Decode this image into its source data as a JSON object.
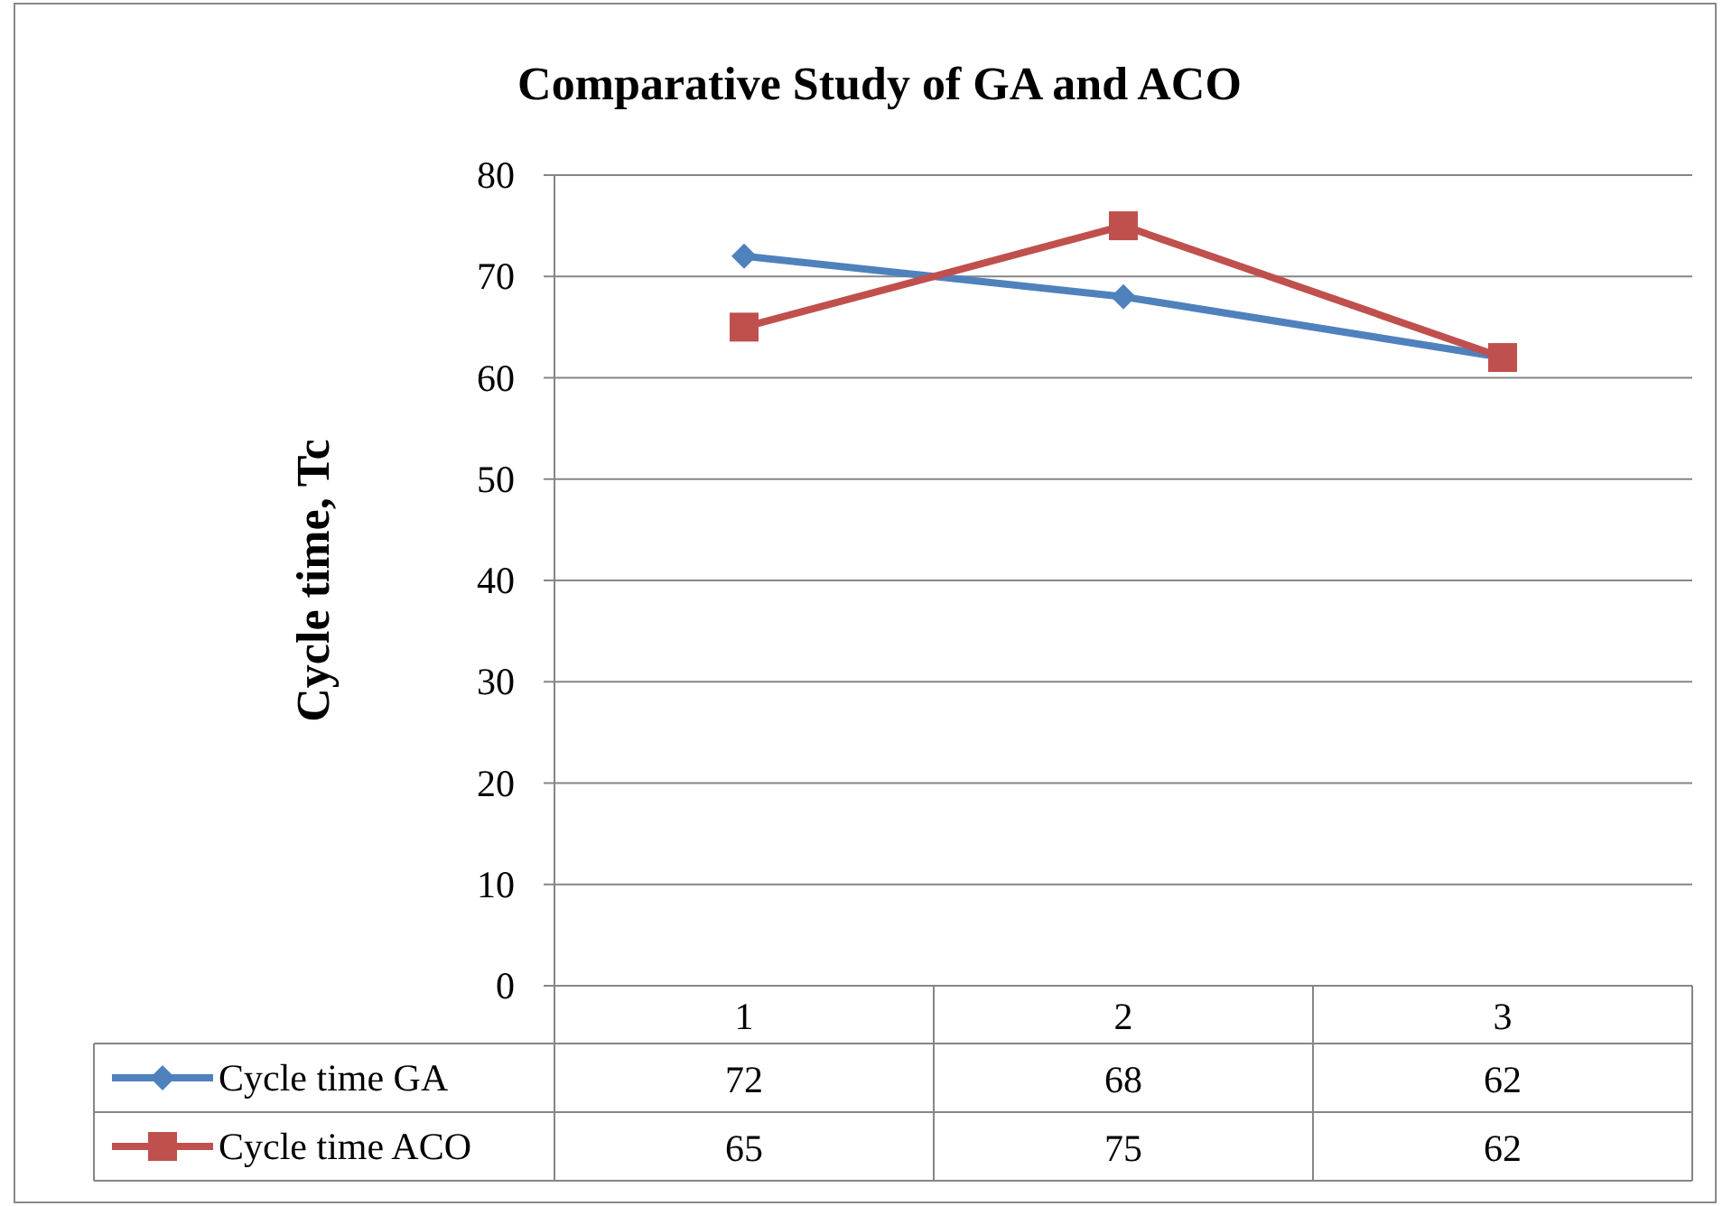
{
  "chart_data": {
    "type": "line",
    "title": "Comparative Study of GA and ACO",
    "ylabel": "Cycle time, Tc",
    "categories": [
      "1",
      "2",
      "3"
    ],
    "series": [
      {
        "name": "Cycle time GA",
        "color": "#4f81bd",
        "values": [
          72,
          68,
          62
        ],
        "marker": "diamond"
      },
      {
        "name": "Cycle time ACO",
        "color": "#c0504d",
        "values": [
          65,
          75,
          62
        ],
        "marker": "square"
      }
    ],
    "ylim": [
      0,
      80
    ],
    "yticks": [
      0,
      10,
      20,
      30,
      40,
      50,
      60,
      70,
      80
    ],
    "grid": "y",
    "legend": "bottom",
    "data_labels": true,
    "line_style": "solid"
  }
}
